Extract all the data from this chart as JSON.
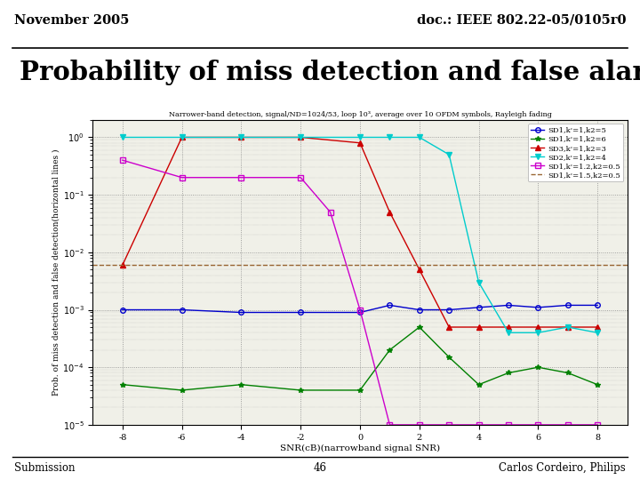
{
  "header_left": "November 2005",
  "header_right": "doc.: IEEE 802.22-05/0105r0",
  "title": "Probability of miss detection and false alarm",
  "footer_left": "Submission",
  "footer_center": "46",
  "footer_right": "Carlos Cordeiro, Philips",
  "chart_title": "Narrower-band detection, signal/ND=1024/53, loop 10³, average over 10 OFDM symbols, Rayleigh fading",
  "xlabel": "SNR(cB)(narrowband signal SNR)",
  "ylabel": "Prob. of miss detection and false detection(horizontal lines )",
  "xticklabels": [
    "-8",
    "-6",
    "-4",
    "-2",
    "0",
    "2",
    "4",
    "6",
    "8"
  ],
  "xticks": [
    -8,
    -6,
    -4,
    -2,
    0,
    2,
    4,
    6,
    8
  ],
  "xlim": [
    -9,
    9
  ],
  "series": [
    {
      "label": "SD1,k'=1,k2=5",
      "color": "#0000CC",
      "marker": "o",
      "linestyle": "-",
      "fillstyle": "none",
      "x": [
        -8,
        -6,
        -4,
        -2,
        0,
        1,
        2,
        3,
        4,
        5,
        6,
        7,
        8
      ],
      "y": [
        0.001,
        0.001,
        0.0009,
        0.0009,
        0.0009,
        0.0012,
        0.001,
        0.001,
        0.0011,
        0.0012,
        0.0011,
        0.0012,
        0.0012
      ]
    },
    {
      "label": "SD1,k'=1,k2=6",
      "color": "#008000",
      "marker": "*",
      "linestyle": "-",
      "fillstyle": "full",
      "x": [
        -8,
        -6,
        -4,
        -2,
        0,
        1,
        2,
        3,
        4,
        5,
        6,
        7,
        8
      ],
      "y": [
        5e-05,
        4e-05,
        5e-05,
        4e-05,
        4e-05,
        0.0002,
        0.0005,
        0.00015,
        5e-05,
        8e-05,
        0.0001,
        8e-05,
        5e-05
      ]
    },
    {
      "label": "SD3,k'=1,k2=3",
      "color": "#CC0000",
      "marker": "^",
      "linestyle": "-",
      "fillstyle": "full",
      "x": [
        -8,
        -6,
        -4,
        -2,
        0,
        1,
        2,
        3,
        4,
        5,
        6,
        7,
        8
      ],
      "y": [
        0.006,
        1.0,
        1.0,
        1.0,
        0.8,
        0.05,
        0.005,
        0.0005,
        0.0005,
        0.0005,
        0.0005,
        0.0005,
        0.0005
      ]
    },
    {
      "label": "SD2,k'=1,k2=4",
      "color": "#00CCCC",
      "marker": "v",
      "linestyle": "-",
      "fillstyle": "full",
      "x": [
        -8,
        -6,
        -4,
        -2,
        0,
        1,
        2,
        3,
        4,
        5,
        6,
        7,
        8
      ],
      "y": [
        1.0,
        1.0,
        1.0,
        1.0,
        1.0,
        1.0,
        1.0,
        0.5,
        0.003,
        0.0004,
        0.0004,
        0.0005,
        0.0004
      ]
    },
    {
      "label": "SD1,k'=1.2,k2=0.5",
      "color": "#CC00CC",
      "marker": "s",
      "linestyle": "-",
      "fillstyle": "none",
      "x": [
        -8,
        -6,
        -4,
        -2,
        -1,
        0,
        1,
        2,
        3,
        4,
        5,
        6,
        7,
        8
      ],
      "y": [
        0.4,
        0.2,
        0.2,
        0.2,
        0.05,
        0.001,
        1e-05,
        1e-05,
        1e-05,
        1e-05,
        1e-05,
        1e-05,
        1e-05,
        1e-05
      ]
    },
    {
      "label": "SD1,k'=1.5,k2=0.5",
      "color": "#996633",
      "marker": "None",
      "linestyle": "--",
      "fillstyle": "full",
      "x": [
        -9,
        9
      ],
      "y": [
        0.006,
        0.006
      ]
    }
  ],
  "bg_color": "#f0f0e8",
  "slide_bg": "#ffffff"
}
